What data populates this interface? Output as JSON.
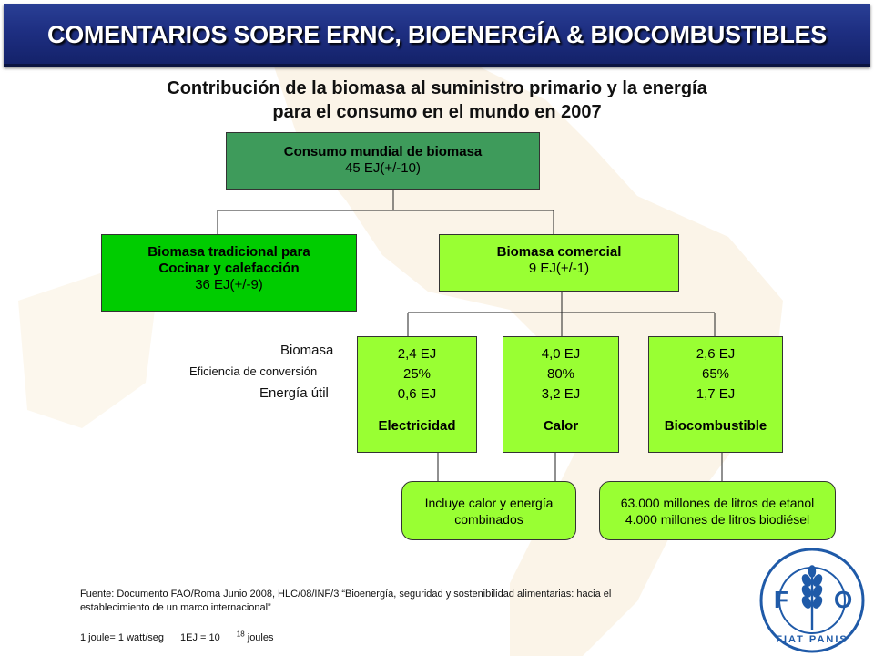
{
  "header": {
    "title": "COMENTARIOS SOBRE ERNC, BIOENERGÍA & BIOCOMBUSTIBLES"
  },
  "subtitle": {
    "line1": "Contribución de la biomasa al suministro primario y la energía",
    "line2": "para el consumo en el mundo en 2007"
  },
  "diagram": {
    "top": {
      "title": "Consumo mundial de biomasa",
      "value": "45 EJ(+/-10)"
    },
    "traditional": {
      "title1": "Biomasa tradicional para",
      "title2": "Cocinar y calefacción",
      "value": "36 EJ(+/-9)"
    },
    "commercial": {
      "title": "Biomasa comercial",
      "value": "9 EJ(+/-1)"
    },
    "row_labels": {
      "biomass": "Biomasa",
      "efficiency": "Eficiencia de conversión",
      "useful": "Energía útil"
    },
    "uses": [
      {
        "biomass": "2,4 EJ",
        "efficiency": "25%",
        "useful": "0,6 EJ",
        "name": "Electricidad"
      },
      {
        "biomass": "4,0 EJ",
        "efficiency": "80%",
        "useful": "3,2 EJ",
        "name": "Calor"
      },
      {
        "biomass": "2,6 EJ",
        "efficiency": "65%",
        "useful": "1,7 EJ",
        "name": "Biocombustible"
      }
    ],
    "notes": {
      "chp": {
        "line1": "Incluye calor y energía",
        "line2": "combinados"
      },
      "biofuels": {
        "line1": "63.000 millones de litros de etanol",
        "line2": "4.000 millones de litros biodiésel"
      }
    }
  },
  "footer": {
    "source_line1": "Fuente: Documento FAO/Roma Junio 2008, HLC/08/INF/3 “Bioenergía, seguridad y sostenibilidad alimentarias: hacia el",
    "source_line2": "establecimiento de un marco internacional”",
    "joule": "1 joule= 1 watt/seg",
    "ej_prefix": "1EJ = 10",
    "ej_exp": "18",
    "ej_suffix": " joules"
  },
  "logo": {
    "letters": [
      "F",
      "A",
      "O"
    ],
    "motto": "FIAT PANIS",
    "icon": "fao-wheat-emblem-icon"
  },
  "colors": {
    "banner": "#1e2f82",
    "top_box": "#3e9b5b",
    "traditional_box": "#00cc00",
    "commercial_box": "#99ff33",
    "logo_blue": "#1f5aa8"
  }
}
